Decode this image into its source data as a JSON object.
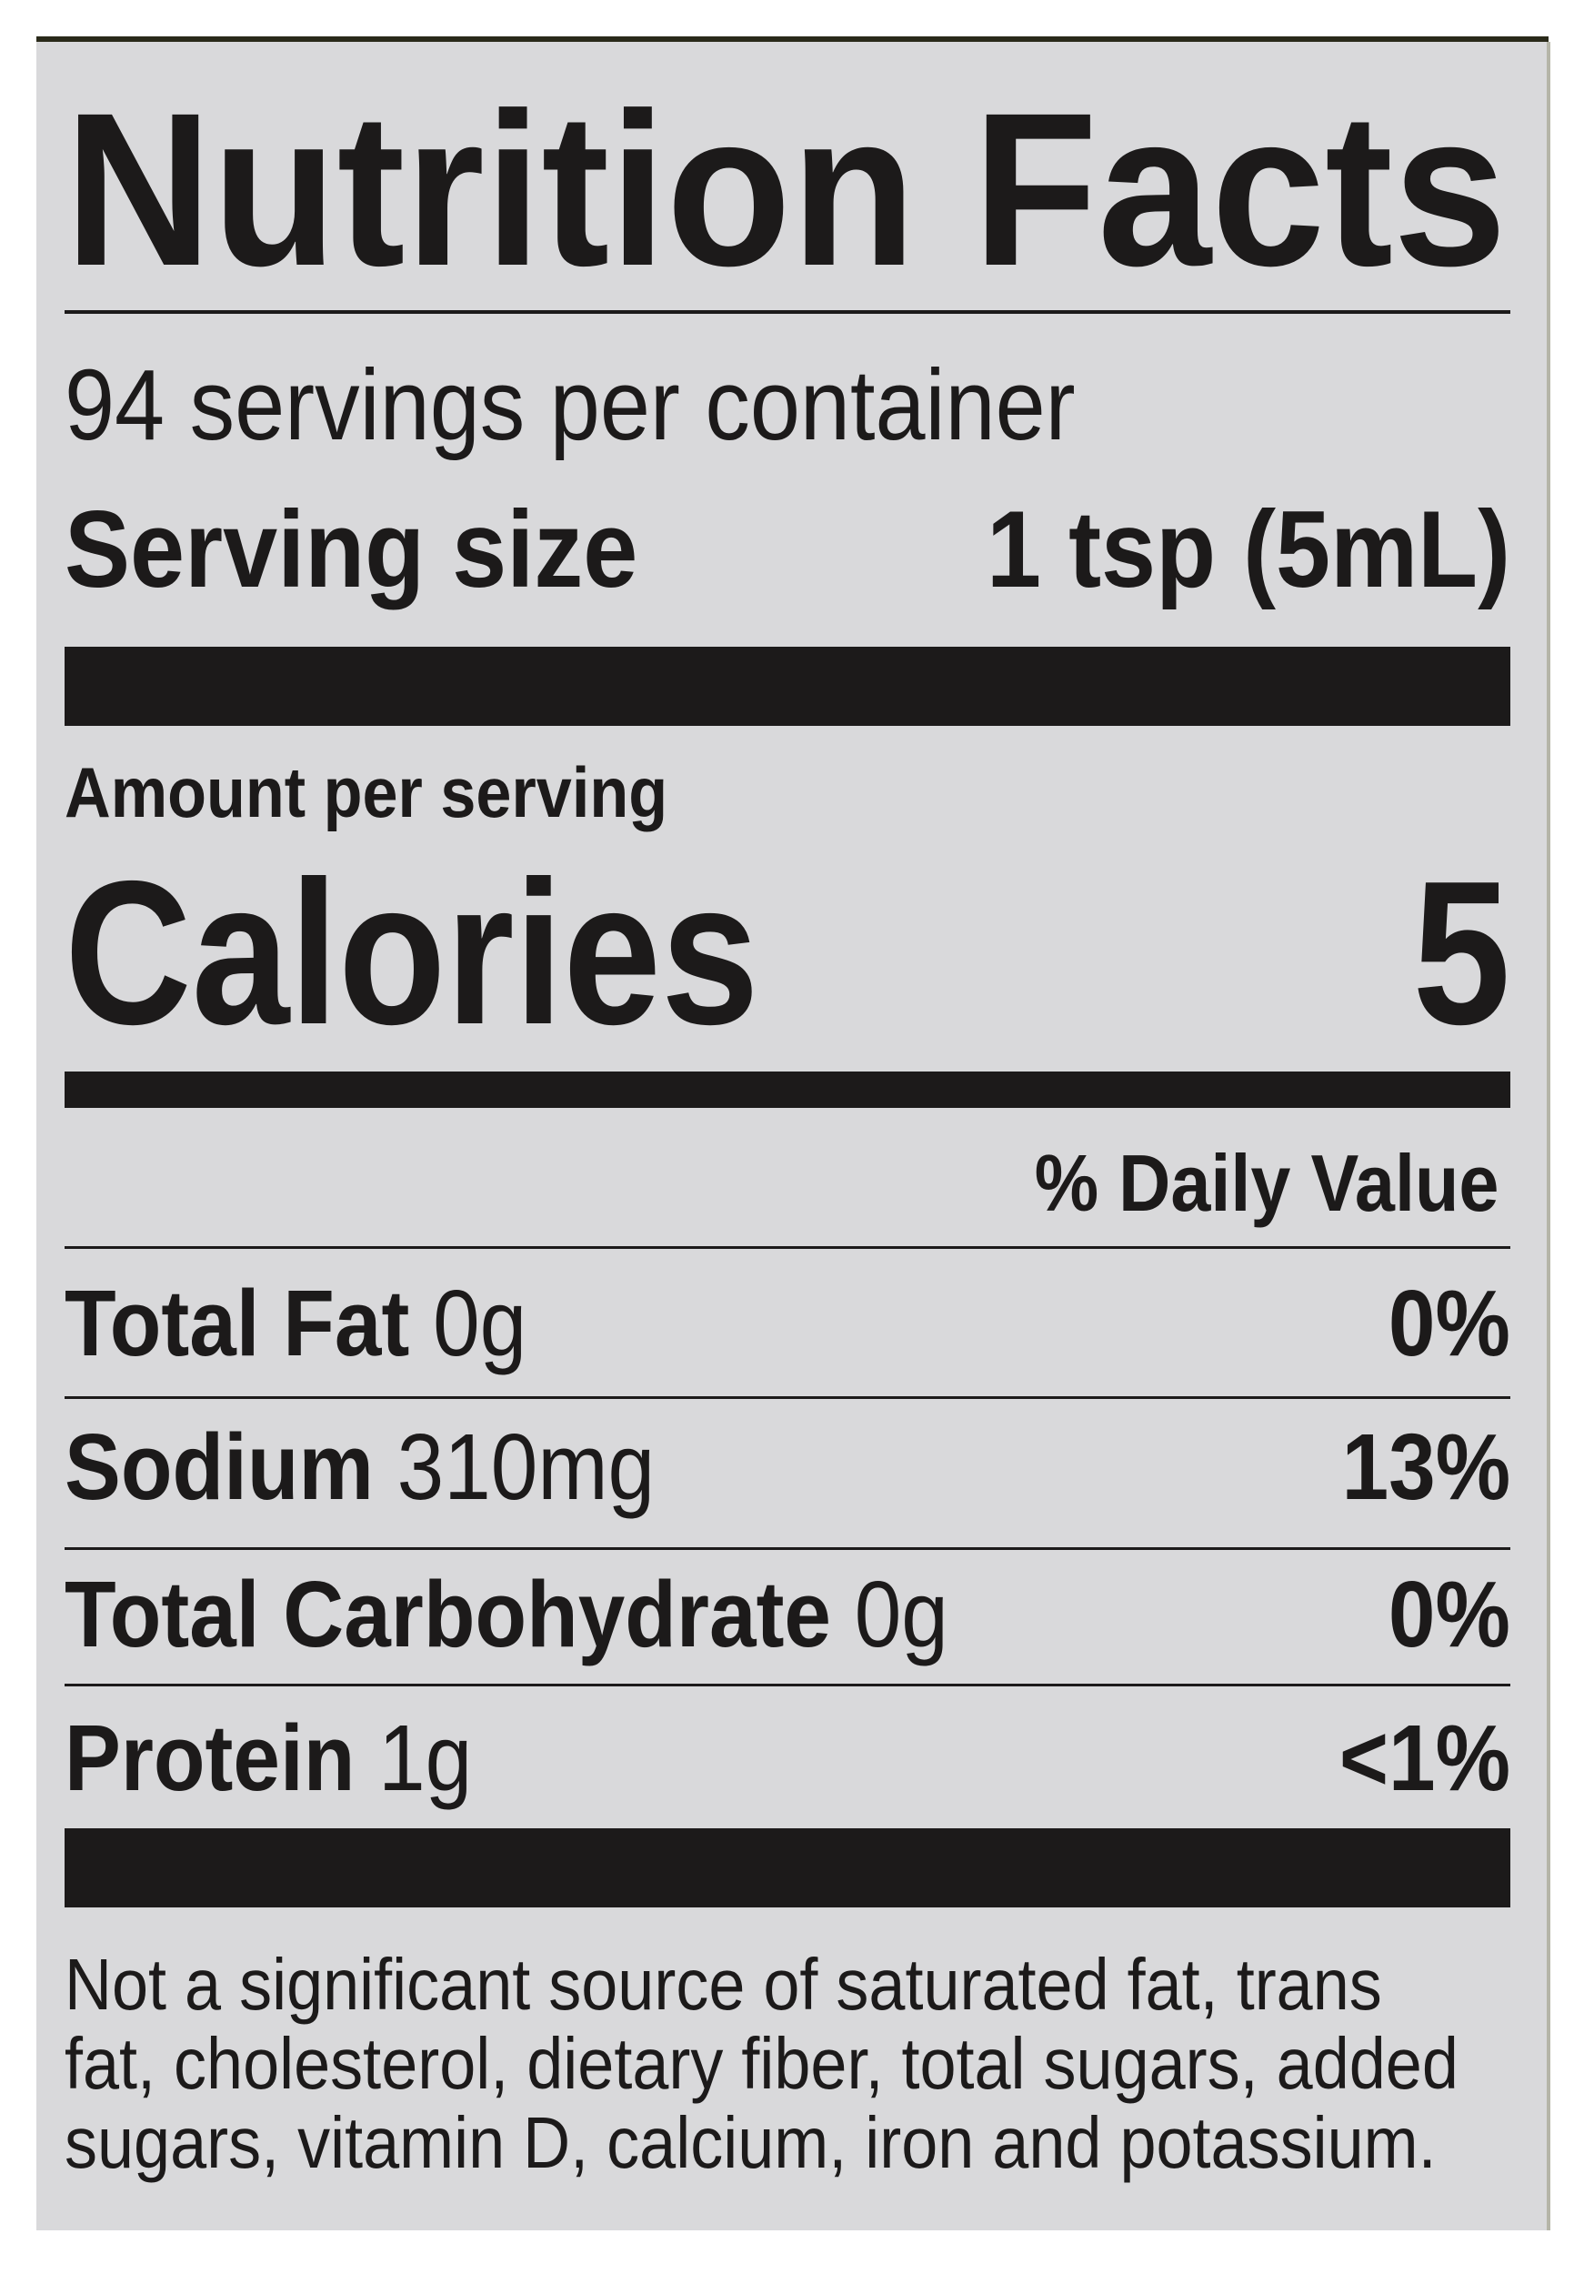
{
  "title": "Nutrition Facts",
  "servings_per_container": "94 servings per container",
  "serving_size": {
    "label": "Serving size",
    "value": "1 tsp (5mL)"
  },
  "amount_per_serving": "Amount per serving",
  "calories": {
    "label": "Calories",
    "value": "5"
  },
  "daily_value_header": "% Daily Value",
  "nutrients": [
    {
      "name": "Total Fat",
      "amount": "0g",
      "dv": "0%"
    },
    {
      "name": "Sodium",
      "amount": "310mg",
      "dv": "13%"
    },
    {
      "name": "Total Carbohydrate",
      "amount": "0g",
      "dv": "0%"
    },
    {
      "name": "Protein",
      "amount": "1g",
      "dv": "<1%"
    }
  ],
  "footnote_lines": [
    "Not a significant source of saturated fat, trans",
    "fat, cholesterol, dietary fiber, total sugars, added",
    "sugars, vitamin D, calcium, iron and potassium."
  ]
}
